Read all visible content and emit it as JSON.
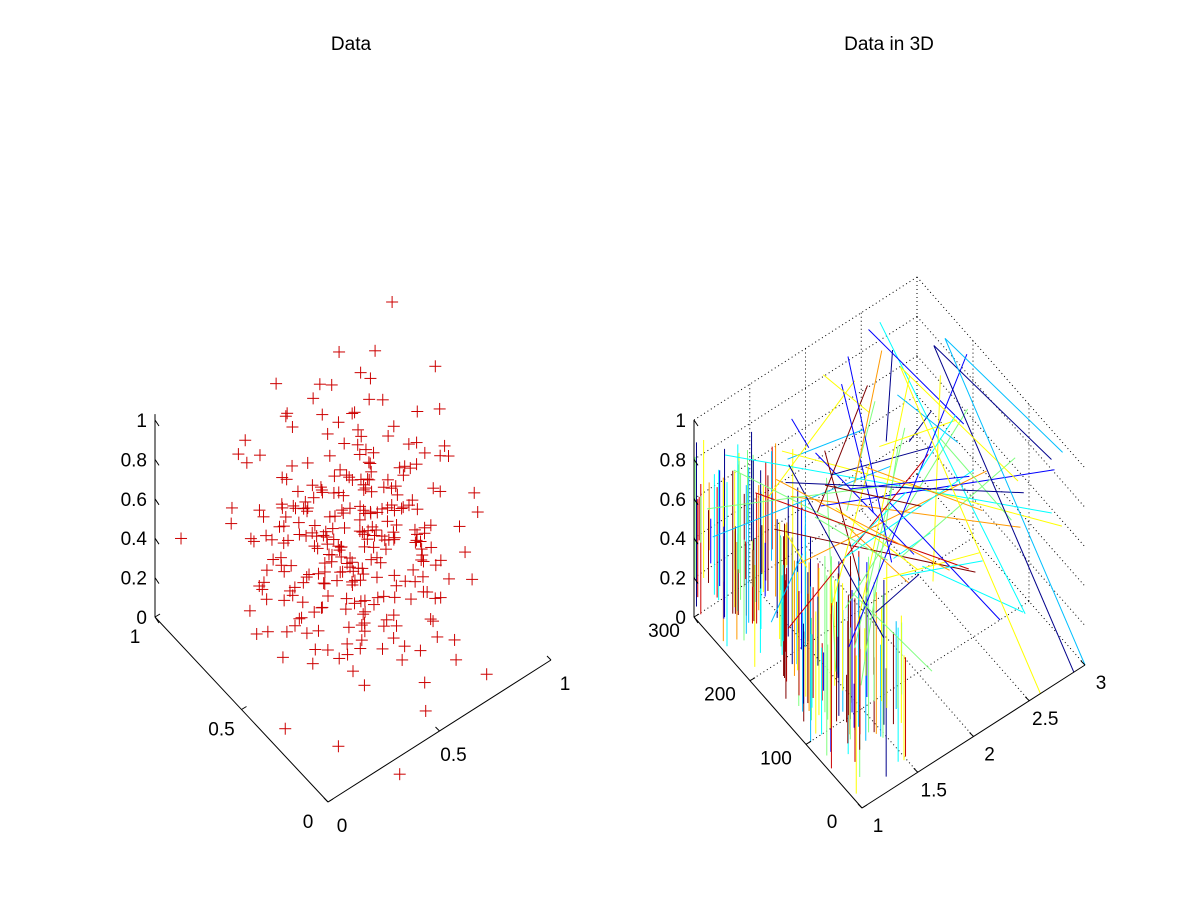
{
  "chart_data": [
    {
      "type": "scatter",
      "title": "Data",
      "marker": "+",
      "marker_color": "#cc0000",
      "axis_ranges": {
        "x": [
          0,
          1
        ],
        "y": [
          0,
          1
        ],
        "z": [
          0,
          1
        ]
      },
      "x_ticks": [
        "0",
        "0.5",
        "1"
      ],
      "y_ticks": [
        "0",
        "0.5",
        "1"
      ],
      "z_ticks": [
        "0",
        "0.2",
        "0.4",
        "0.6",
        "0.8",
        "1"
      ],
      "grid": false,
      "points_count": 300
    },
    {
      "type": "line",
      "title": "Data in 3D",
      "axis_ranges": {
        "x": [
          1,
          3
        ],
        "y": [
          0,
          300
        ],
        "z": [
          0,
          1
        ]
      },
      "x_ticks": [
        "1",
        "1.5",
        "2",
        "2.5",
        "3"
      ],
      "y_ticks": [
        "0",
        "100",
        "200",
        "300"
      ],
      "z_ticks": [
        "0",
        "0.2",
        "0.4",
        "0.6",
        "0.8",
        "1"
      ],
      "grid": true,
      "colors": [
        "#00008b",
        "#0000ff",
        "#00bfff",
        "#00ffff",
        "#7fff7f",
        "#ffff00",
        "#ff9900",
        "#cc0000",
        "#800000"
      ]
    }
  ]
}
